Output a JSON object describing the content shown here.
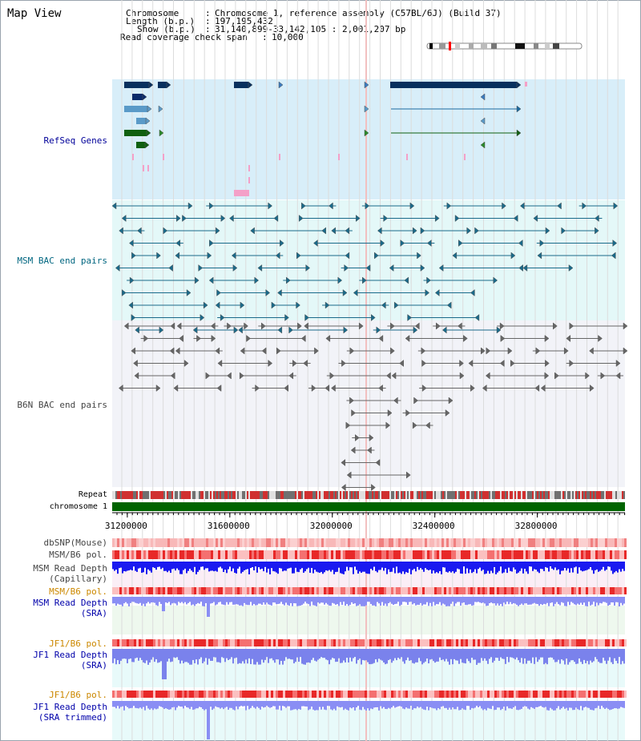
{
  "page_title": "Map View",
  "info": {
    "chromosome_label": "Chromosome",
    "chromosome_value": "Chromosome 1, reference assembly (C57BL/6J) (Build 37)",
    "length_label": "Length (b.p.)",
    "length_value": "197,195,432",
    "show_label": "Show (b.p.)",
    "show_value": "31,140,899-33,142,105 : 2,001,207 bp",
    "coverage_label": "Read coverage check span",
    "coverage_value": "10,000"
  },
  "tracks": {
    "refseq": "RefSeq Genes",
    "msm_bac": "MSM BAC end pairs",
    "b6n_bac": "B6N BAC end pairs",
    "repeat": "Repeat",
    "chromosome": "chromosome 1",
    "dbsnp": "dbSNP(Mouse)",
    "msm_b6_pol_1": "MSM/B6 pol.",
    "msm_rd_cap_1": "MSM Read Depth",
    "msm_rd_cap_2": "(Capillary)",
    "msm_b6_pol_2": "MSM/B6 pol.",
    "msm_rd_sra_1": "MSM Read Depth",
    "msm_rd_sra_2": "(SRA)",
    "jf1_b6_pol_1": "JF1/B6 pol.",
    "jf1_rd_sra_1": "JF1 Read Depth",
    "jf1_rd_sra_2": "(SRA)",
    "jf1_b6_pol_2": "JF1/B6 pol.",
    "jf1_rd_trim_1": "JF1 Read Depth",
    "jf1_rd_trim_2": "(SRA trimmed)"
  },
  "axis": {
    "ticks": [
      "31200000",
      "31600000",
      "32000000",
      "32400000",
      "32800000"
    ],
    "tick_values": [
      31200000,
      31600000,
      32000000,
      32400000,
      32800000
    ],
    "range": [
      31140899,
      33142105
    ]
  },
  "colors": {
    "refseq_label": "#000099",
    "msm_label": "#006680",
    "b6n_label": "#444444",
    "pol_label": "#cc8800",
    "depth_label": "#0000aa",
    "refseq_bg": "#d8eef9",
    "msm_bg": "#e4f8f8",
    "b6n_bg": "#f2f3f8",
    "chromosome_bar": "#006400"
  }
}
